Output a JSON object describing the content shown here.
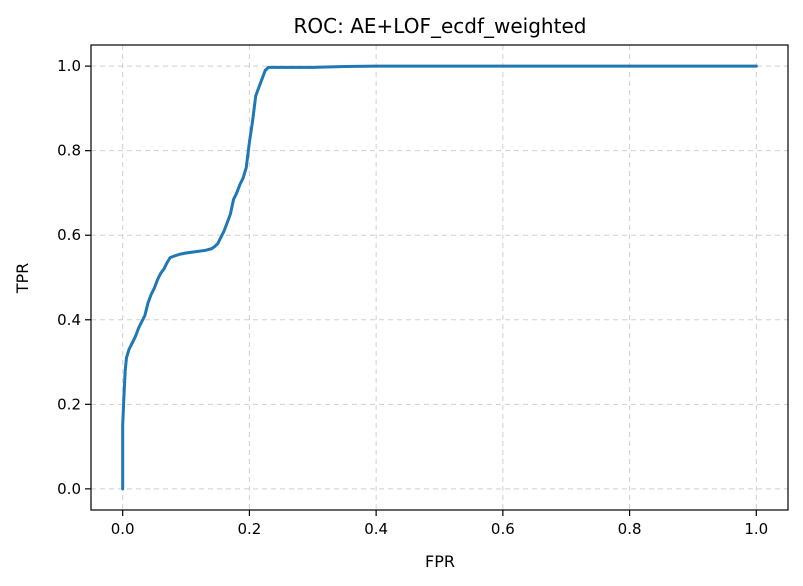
{
  "chart_data": {
    "type": "line",
    "title": "ROC: AE+LOF_ecdf_weighted",
    "xlabel": "FPR",
    "ylabel": "TPR",
    "xlim": [
      -0.05,
      1.05
    ],
    "ylim": [
      -0.05,
      1.05
    ],
    "grid": true,
    "series_color": "#1f77b4",
    "x_ticks": [
      {
        "value": 0.0,
        "label": "0.0"
      },
      {
        "value": 0.2,
        "label": "0.2"
      },
      {
        "value": 0.4,
        "label": "0.4"
      },
      {
        "value": 0.6,
        "label": "0.6"
      },
      {
        "value": 0.8,
        "label": "0.8"
      },
      {
        "value": 1.0,
        "label": "1.0"
      }
    ],
    "y_ticks": [
      {
        "value": 0.0,
        "label": "0.0"
      },
      {
        "value": 0.2,
        "label": "0.2"
      },
      {
        "value": 0.4,
        "label": "0.4"
      },
      {
        "value": 0.6,
        "label": "0.6"
      },
      {
        "value": 0.8,
        "label": "0.8"
      },
      {
        "value": 1.0,
        "label": "1.0"
      }
    ],
    "series": [
      {
        "x": [
          0.0,
          0.0,
          0.002,
          0.004,
          0.006,
          0.01,
          0.015,
          0.02,
          0.025,
          0.03,
          0.035,
          0.04,
          0.045,
          0.05,
          0.055,
          0.06,
          0.065,
          0.07,
          0.075,
          0.08,
          0.09,
          0.1,
          0.11,
          0.12,
          0.13,
          0.14,
          0.145,
          0.15,
          0.155,
          0.16,
          0.165,
          0.17,
          0.175,
          0.18,
          0.185,
          0.19,
          0.195,
          0.2,
          0.205,
          0.21,
          0.215,
          0.22,
          0.225,
          0.23,
          0.235,
          0.24,
          0.3,
          0.35,
          0.4,
          0.5,
          0.6,
          0.7,
          0.8,
          0.9,
          1.0
        ],
        "y": [
          0.0,
          0.15,
          0.22,
          0.28,
          0.31,
          0.33,
          0.345,
          0.36,
          0.38,
          0.395,
          0.41,
          0.44,
          0.46,
          0.475,
          0.495,
          0.51,
          0.52,
          0.535,
          0.547,
          0.55,
          0.555,
          0.558,
          0.56,
          0.562,
          0.564,
          0.568,
          0.573,
          0.58,
          0.595,
          0.61,
          0.63,
          0.65,
          0.685,
          0.7,
          0.72,
          0.735,
          0.76,
          0.82,
          0.87,
          0.93,
          0.95,
          0.97,
          0.99,
          0.997,
          0.997,
          0.997,
          0.997,
          0.999,
          1.0,
          1.0,
          1.0,
          1.0,
          1.0,
          1.0,
          1.0
        ]
      }
    ]
  }
}
